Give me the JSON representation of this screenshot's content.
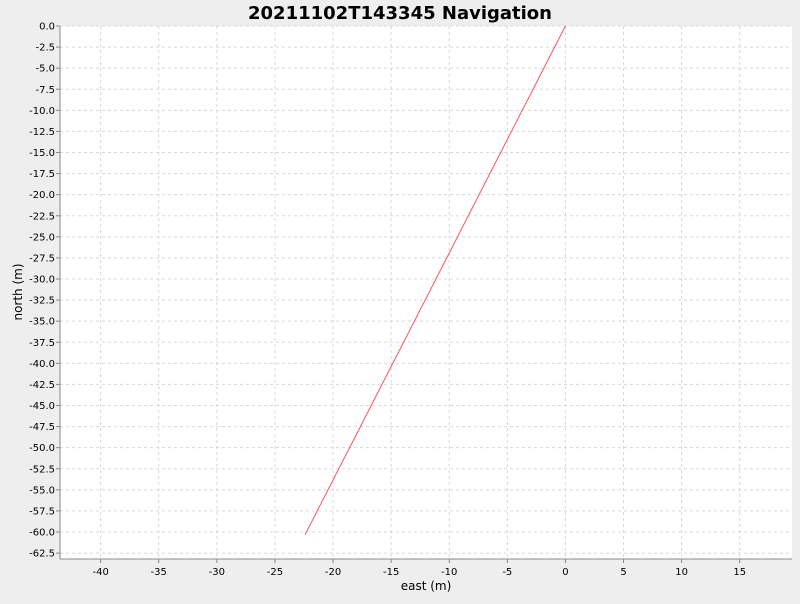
{
  "chart_data": {
    "type": "line",
    "title": "20211102T143345 Navigation",
    "xlabel": "east (m)",
    "ylabel": "north (m)",
    "xlim": [
      -43.5,
      19.5
    ],
    "ylim": [
      -63.2,
      0
    ],
    "x_ticks": [
      -40,
      -35,
      -30,
      -25,
      -20,
      -15,
      -10,
      -5,
      0,
      5,
      10,
      15
    ],
    "x_tick_labels": [
      "-40",
      "-35",
      "-30",
      "-25",
      "-20",
      "-15",
      "-10",
      "-5",
      "0",
      "5",
      "10",
      "15"
    ],
    "y_ticks": [
      0,
      -2.5,
      -5,
      -7.5,
      -10,
      -12.5,
      -15,
      -17.5,
      -20,
      -22.5,
      -25,
      -27.5,
      -30,
      -32.5,
      -35,
      -37.5,
      -40,
      -42.5,
      -45,
      -47.5,
      -50,
      -52.5,
      -55,
      -57.5,
      -60,
      -62.5
    ],
    "y_tick_labels": [
      "0.0",
      "-2.5",
      "-5.0",
      "-7.5",
      "-10.0",
      "-12.5",
      "-15.0",
      "-17.5",
      "-20.0",
      "-22.5",
      "-25.0",
      "-27.5",
      "-30.0",
      "-32.5",
      "-35.0",
      "-37.5",
      "-40.0",
      "-42.5",
      "-45.0",
      "-47.5",
      "-50.0",
      "-52.5",
      "-55.0",
      "-57.5",
      "-60.0",
      "-62.5"
    ],
    "grid": true,
    "legend": "none",
    "series": [
      {
        "color": "#ff5555",
        "x": [
          0.0,
          -22.4
        ],
        "y": [
          0.0,
          -60.3
        ]
      }
    ]
  },
  "colors": {
    "background": "#eeeeee",
    "plot_background": "#ffffff",
    "gridline": "#d8d8d8",
    "axis": "#888888",
    "text": "#000000"
  }
}
